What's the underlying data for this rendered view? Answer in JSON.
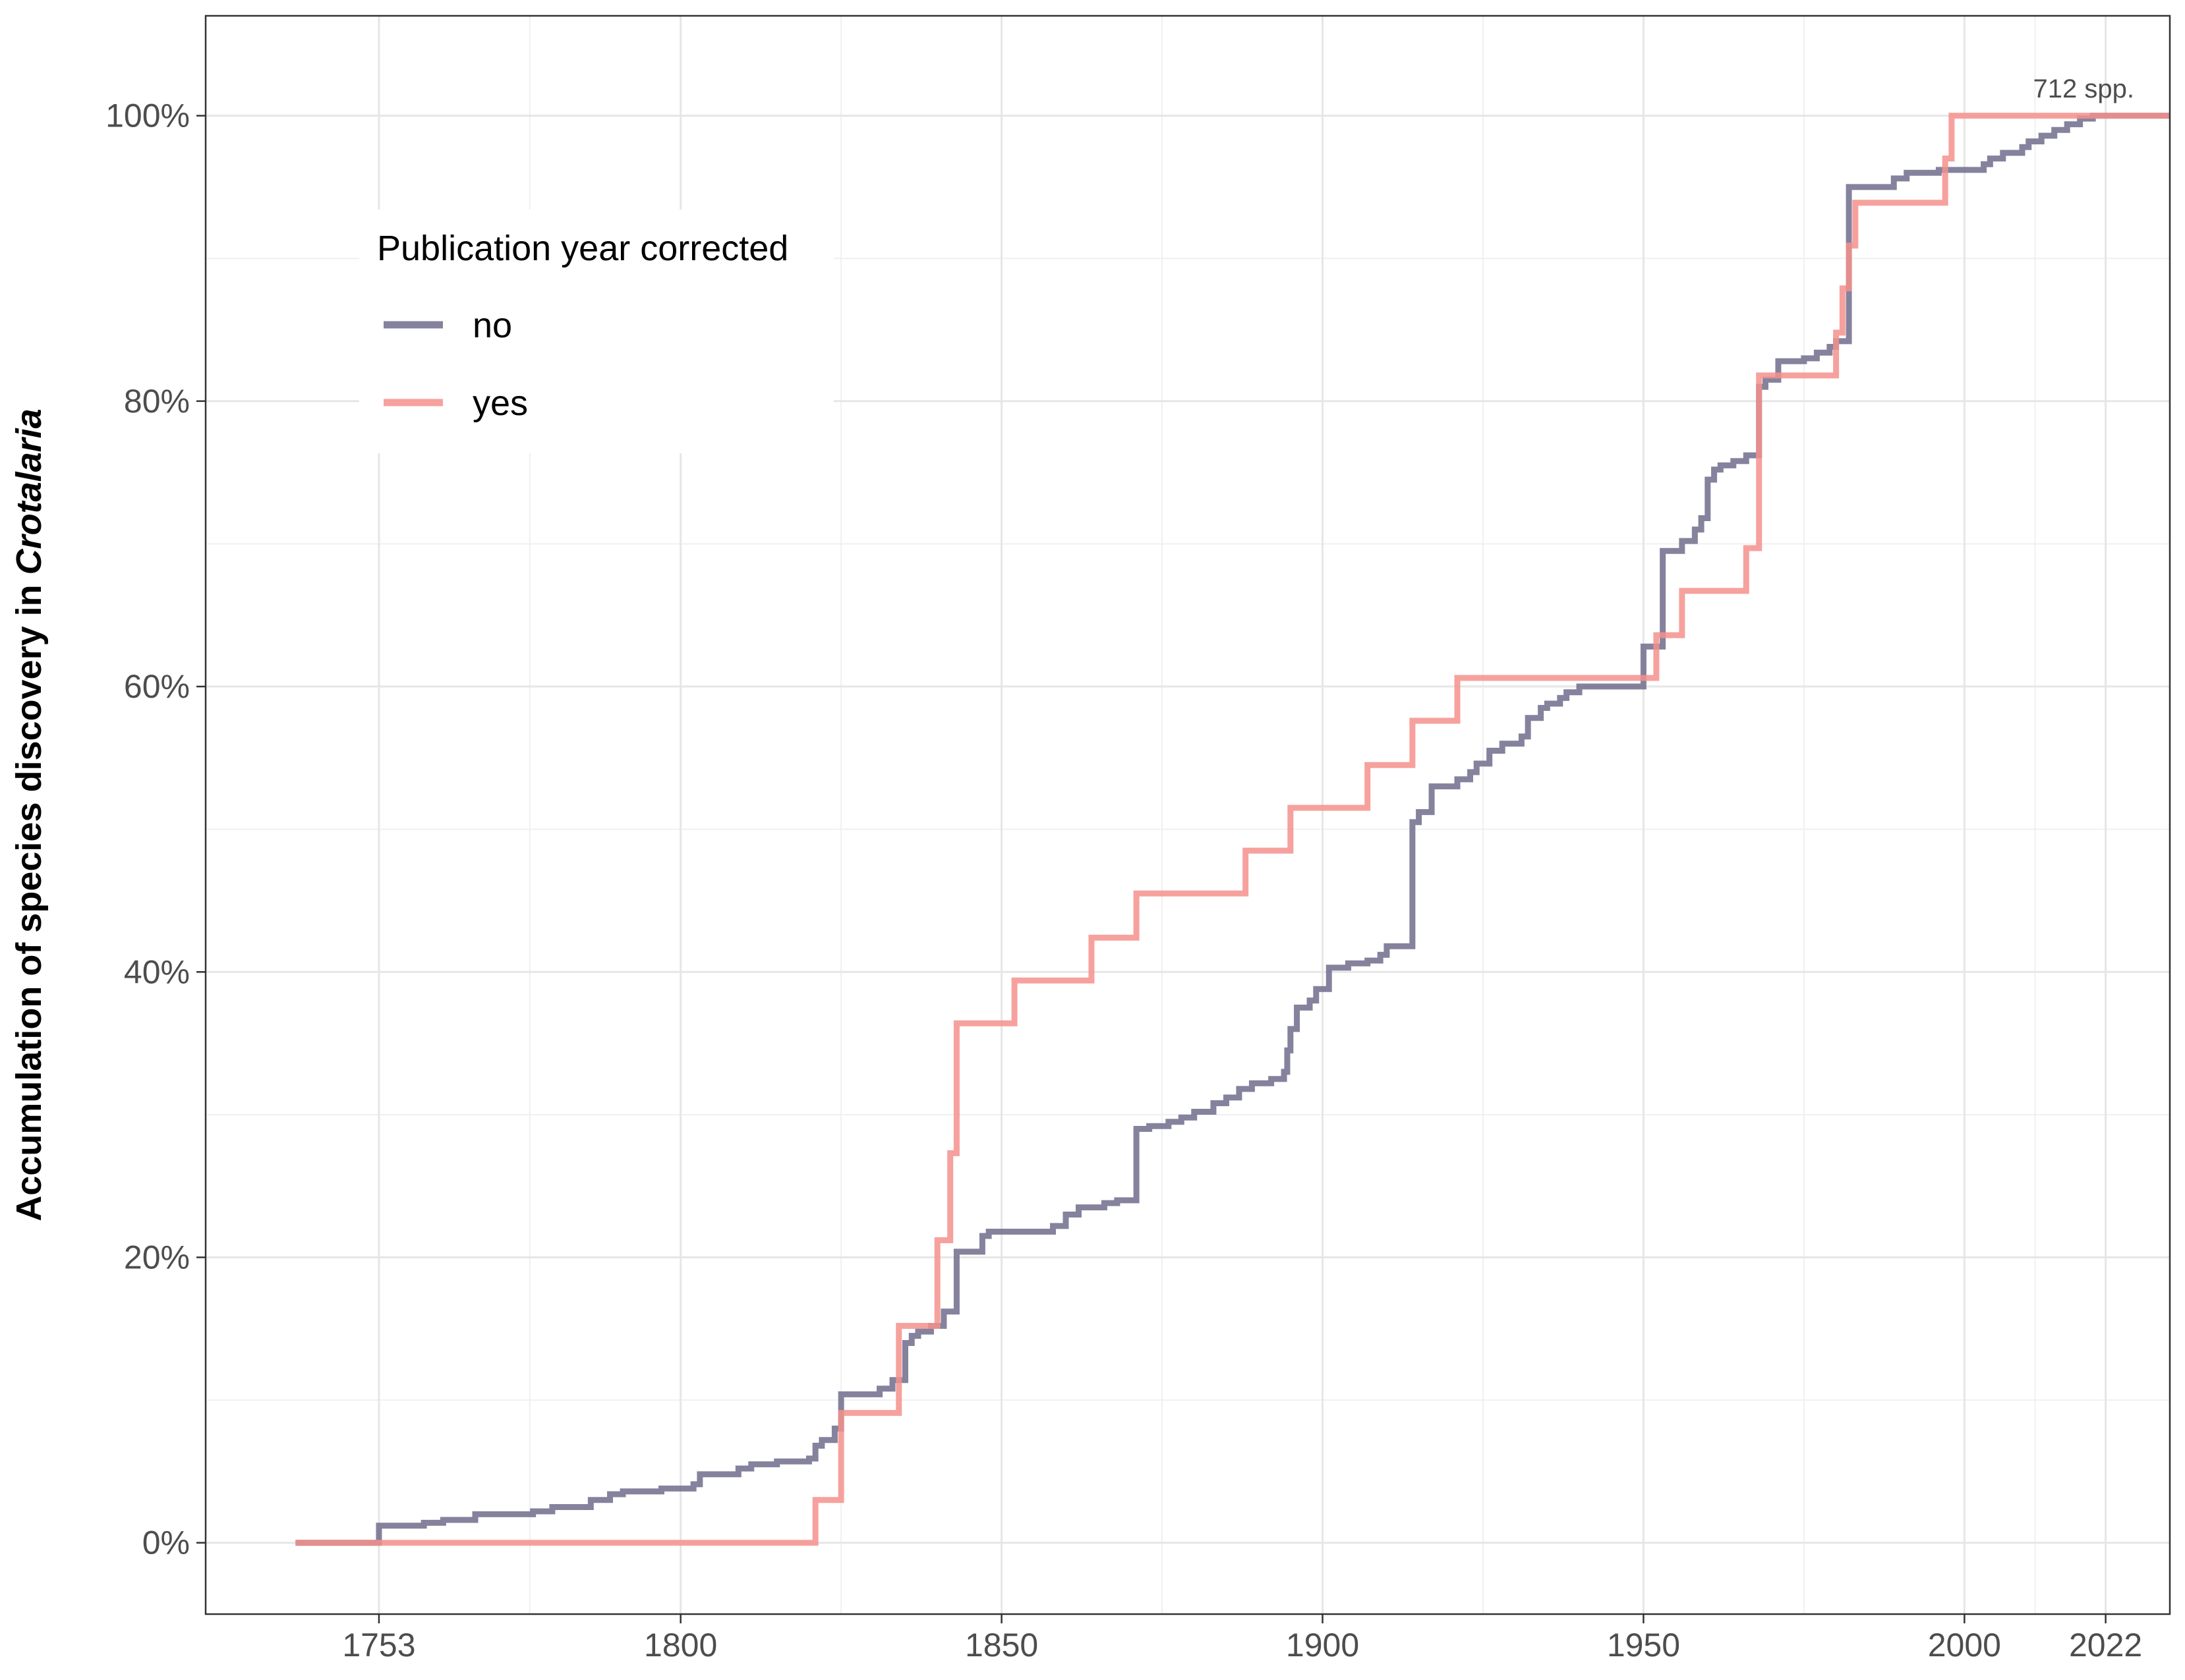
{
  "chart_data": {
    "type": "line",
    "step": true,
    "ylabel_prefix": "Accumulation of species discovery in ",
    "ylabel_italic": "Crotalaria",
    "xlabel": "",
    "xlim": [
      1726,
      2032
    ],
    "ylim": [
      -0.05,
      1.07
    ],
    "xticks": [
      1753,
      1800,
      1850,
      1900,
      1950,
      2000,
      2022
    ],
    "yticks": [
      0,
      0.2,
      0.4,
      0.6,
      0.8,
      1.0
    ],
    "ytick_labels": [
      "0%",
      "20%",
      "40%",
      "60%",
      "80%",
      "100%"
    ],
    "grid": true,
    "legend": {
      "title": "Publication year corrected",
      "placement": "top-left",
      "entries": [
        "no",
        "yes"
      ]
    },
    "annotation": "712  spp.",
    "series": [
      {
        "name": "no",
        "color": "#706c8c",
        "points": [
          [
            1740,
            0.0
          ],
          [
            1753,
            0.012
          ],
          [
            1760,
            0.014
          ],
          [
            1763,
            0.016
          ],
          [
            1768,
            0.02
          ],
          [
            1777,
            0.022
          ],
          [
            1780,
            0.025
          ],
          [
            1786,
            0.03
          ],
          [
            1789,
            0.034
          ],
          [
            1791,
            0.036
          ],
          [
            1797,
            0.038
          ],
          [
            1802,
            0.041
          ],
          [
            1803,
            0.048
          ],
          [
            1809,
            0.052
          ],
          [
            1811,
            0.055
          ],
          [
            1815,
            0.057
          ],
          [
            1820,
            0.059
          ],
          [
            1821,
            0.068
          ],
          [
            1822,
            0.072
          ],
          [
            1824,
            0.08
          ],
          [
            1825,
            0.104
          ],
          [
            1831,
            0.108
          ],
          [
            1833,
            0.114
          ],
          [
            1835,
            0.14
          ],
          [
            1836,
            0.145
          ],
          [
            1837,
            0.148
          ],
          [
            1839,
            0.152
          ],
          [
            1841,
            0.162
          ],
          [
            1843,
            0.204
          ],
          [
            1847,
            0.215
          ],
          [
            1848,
            0.218
          ],
          [
            1858,
            0.222
          ],
          [
            1860,
            0.23
          ],
          [
            1862,
            0.235
          ],
          [
            1866,
            0.238
          ],
          [
            1868,
            0.24
          ],
          [
            1871,
            0.29
          ],
          [
            1873,
            0.292
          ],
          [
            1876,
            0.295
          ],
          [
            1878,
            0.298
          ],
          [
            1880,
            0.302
          ],
          [
            1883,
            0.308
          ],
          [
            1885,
            0.312
          ],
          [
            1887,
            0.318
          ],
          [
            1889,
            0.322
          ],
          [
            1892,
            0.325
          ],
          [
            1894,
            0.33
          ],
          [
            1894.5,
            0.345
          ],
          [
            1895,
            0.36
          ],
          [
            1896,
            0.375
          ],
          [
            1898,
            0.38
          ],
          [
            1899,
            0.388
          ],
          [
            1901,
            0.403
          ],
          [
            1904,
            0.406
          ],
          [
            1907,
            0.408
          ],
          [
            1909,
            0.412
          ],
          [
            1910,
            0.418
          ],
          [
            1914,
            0.505
          ],
          [
            1915,
            0.512
          ],
          [
            1917,
            0.53
          ],
          [
            1921,
            0.535
          ],
          [
            1923,
            0.54
          ],
          [
            1924,
            0.546
          ],
          [
            1926,
            0.555
          ],
          [
            1928,
            0.56
          ],
          [
            1931,
            0.565
          ],
          [
            1932,
            0.578
          ],
          [
            1934,
            0.585
          ],
          [
            1935,
            0.588
          ],
          [
            1937,
            0.592
          ],
          [
            1938,
            0.596
          ],
          [
            1940,
            0.6
          ],
          [
            1950,
            0.628
          ],
          [
            1953,
            0.695
          ],
          [
            1956,
            0.702
          ],
          [
            1958,
            0.71
          ],
          [
            1959,
            0.718
          ],
          [
            1960,
            0.745
          ],
          [
            1961,
            0.752
          ],
          [
            1962,
            0.755
          ],
          [
            1964,
            0.758
          ],
          [
            1966,
            0.762
          ],
          [
            1968,
            0.81
          ],
          [
            1969,
            0.815
          ],
          [
            1971,
            0.828
          ],
          [
            1975,
            0.83
          ],
          [
            1977,
            0.834
          ],
          [
            1979,
            0.838
          ],
          [
            1980,
            0.842
          ],
          [
            1982,
            0.95
          ],
          [
            1989,
            0.956
          ],
          [
            1991,
            0.96
          ],
          [
            1996,
            0.962
          ],
          [
            2003,
            0.966
          ],
          [
            2004,
            0.97
          ],
          [
            2006,
            0.974
          ],
          [
            2009,
            0.978
          ],
          [
            2010,
            0.982
          ],
          [
            2012,
            0.986
          ],
          [
            2014,
            0.99
          ],
          [
            2016,
            0.994
          ],
          [
            2018,
            0.998
          ],
          [
            2020,
            1.0
          ],
          [
            2032,
            1.0
          ]
        ]
      },
      {
        "name": "yes",
        "color": "#f4908c",
        "points": [
          [
            1740,
            0.0
          ],
          [
            1821,
            0.03
          ],
          [
            1825,
            0.091
          ],
          [
            1834,
            0.152
          ],
          [
            1840,
            0.212
          ],
          [
            1842,
            0.273
          ],
          [
            1843,
            0.364
          ],
          [
            1852,
            0.394
          ],
          [
            1864,
            0.424
          ],
          [
            1871,
            0.455
          ],
          [
            1888,
            0.485
          ],
          [
            1895,
            0.515
          ],
          [
            1907,
            0.545
          ],
          [
            1914,
            0.576
          ],
          [
            1921,
            0.606
          ],
          [
            1952,
            0.636
          ],
          [
            1956,
            0.667
          ],
          [
            1966,
            0.697
          ],
          [
            1968,
            0.818
          ],
          [
            1980,
            0.848
          ],
          [
            1981,
            0.879
          ],
          [
            1982,
            0.909
          ],
          [
            1983,
            0.939
          ],
          [
            1997,
            0.97
          ],
          [
            1998,
            1.0
          ],
          [
            2032,
            1.0
          ]
        ]
      }
    ]
  }
}
